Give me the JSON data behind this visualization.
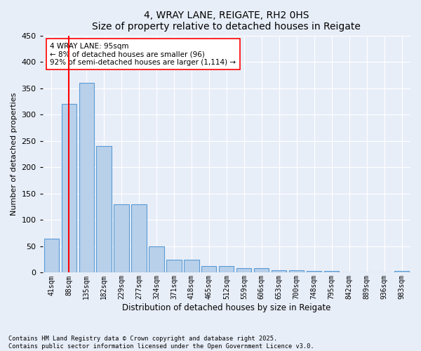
{
  "title": "4, WRAY LANE, REIGATE, RH2 0HS",
  "subtitle": "Size of property relative to detached houses in Reigate",
  "xlabel": "Distribution of detached houses by size in Reigate",
  "ylabel": "Number of detached properties",
  "categories": [
    "41sqm",
    "88sqm",
    "135sqm",
    "182sqm",
    "229sqm",
    "277sqm",
    "324sqm",
    "371sqm",
    "418sqm",
    "465sqm",
    "512sqm",
    "559sqm",
    "606sqm",
    "653sqm",
    "700sqm",
    "748sqm",
    "795sqm",
    "842sqm",
    "889sqm",
    "936sqm",
    "983sqm"
  ],
  "values": [
    65,
    320,
    360,
    240,
    130,
    130,
    50,
    25,
    25,
    13,
    13,
    9,
    9,
    5,
    5,
    3,
    3,
    1,
    1,
    1,
    3
  ],
  "bar_color": "#b8d0ea",
  "bar_edge_color": "#5b9bd5",
  "vline_x": 1,
  "vline_color": "red",
  "annotation_text": "4 WRAY LANE: 95sqm\n← 8% of detached houses are smaller (96)\n92% of semi-detached houses are larger (1,114) →",
  "annotation_box_color": "white",
  "annotation_box_edge_color": "red",
  "ylim": [
    0,
    450
  ],
  "yticks": [
    0,
    50,
    100,
    150,
    200,
    250,
    300,
    350,
    400,
    450
  ],
  "footer_text": "Contains HM Land Registry data © Crown copyright and database right 2025.\nContains public sector information licensed under the Open Government Licence v3.0.",
  "bg_color": "#e8eef8",
  "plot_bg_color": "#e8eef8",
  "grid_color": "white",
  "figwidth": 6.0,
  "figheight": 5.0,
  "dpi": 100
}
